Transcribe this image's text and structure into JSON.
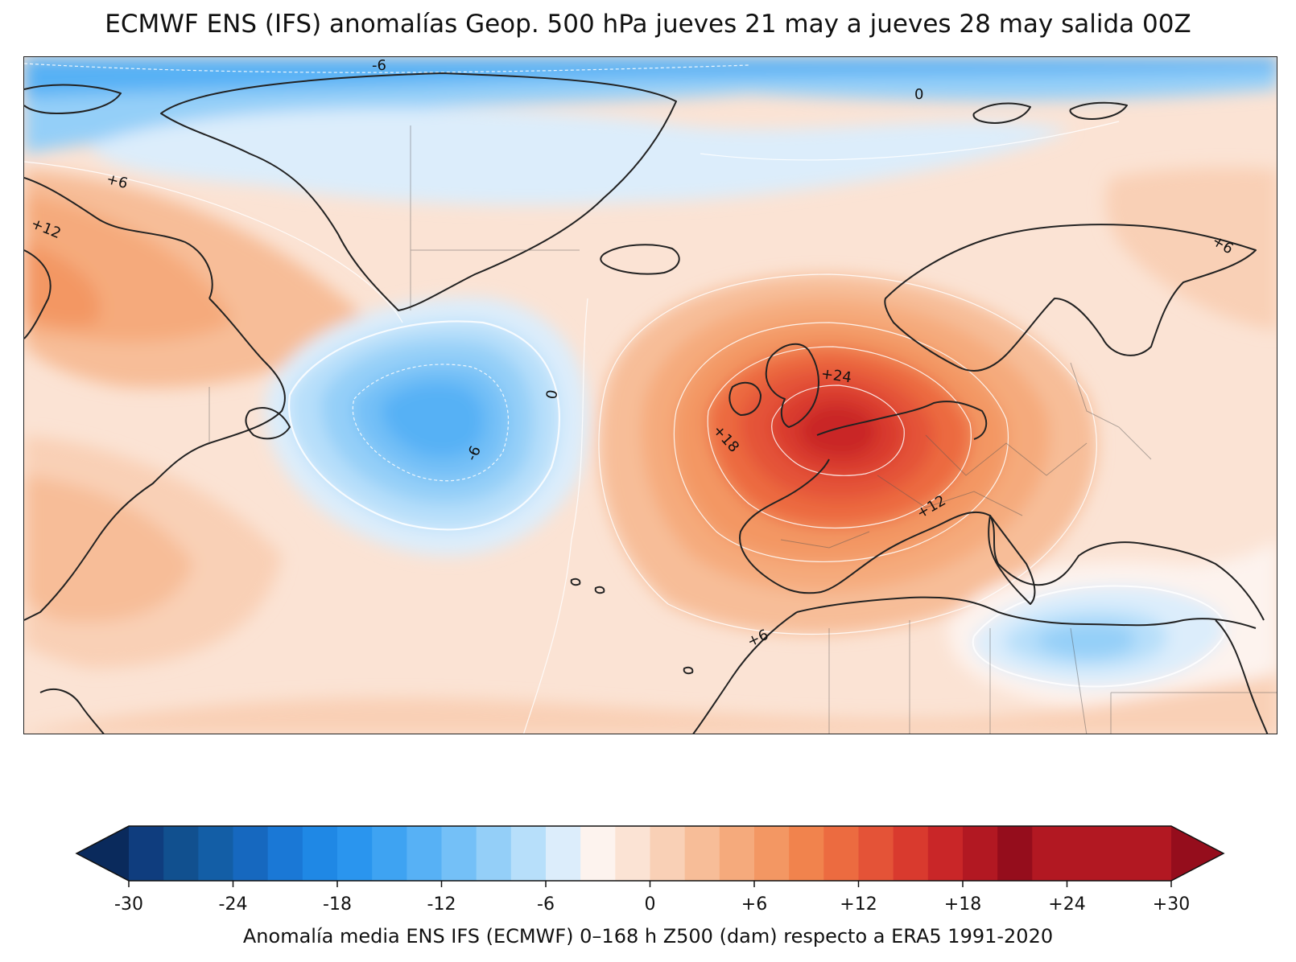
{
  "title": "ECMWF ENS (IFS) anomalías Geop. 500 hPa jueves 21 may a jueves 28 may salida 00Z",
  "colorbar": {
    "ticks": [
      "-30",
      "-24",
      "-18",
      "-12",
      "-6",
      "0",
      "+6",
      "+12",
      "+18",
      "+24",
      "+30"
    ],
    "caption": "Anomalía media ENS IFS (ECMWF) 0–168 h Z500 (dam) respecto a ERA5 1991-2020",
    "range": [
      -30,
      30
    ],
    "step": 2,
    "colors": [
      "#0a2a5c",
      "#0f3d7e",
      "#11508f",
      "#135ea6",
      "#1668bf",
      "#1a78d6",
      "#1f88e5",
      "#2a95ee",
      "#3ea3f2",
      "#57b1f5",
      "#74c0f7",
      "#94cff8",
      "#b7dffa",
      "#dcedfb",
      "#fdf3ee",
      "#fbe3d4",
      "#f9d0b6",
      "#f7bd98",
      "#f5aa7c",
      "#f39763",
      "#f1834d",
      "#ec6b40",
      "#e45337",
      "#d93a2e",
      "#c92628",
      "#b21822",
      "#950d1c"
    ],
    "extend": "both"
  },
  "map": {
    "contour_labels": [
      "-6",
      "0",
      "+6",
      "+12",
      "+6",
      "-6",
      "0",
      "+24",
      "+18",
      "+12",
      "+6",
      "+6"
    ]
  }
}
